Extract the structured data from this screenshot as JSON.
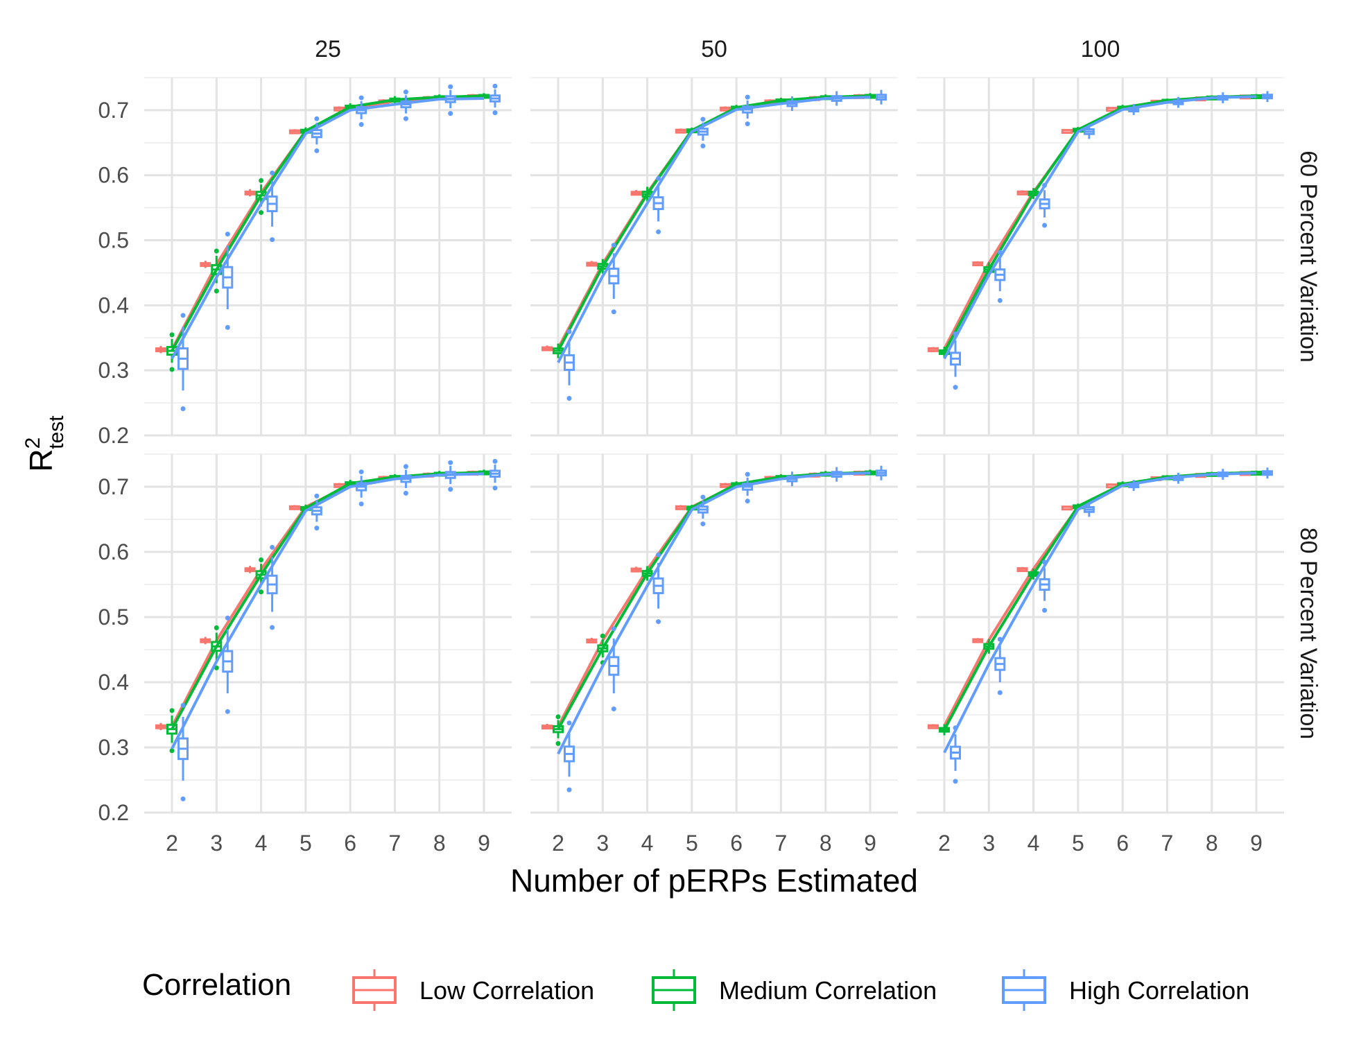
{
  "chart_data": {
    "type": "box-line",
    "xlabel": "Number of pERPs Estimated",
    "ylabel_main": "R",
    "ylabel_sup": "2",
    "ylabel_sub": "test",
    "x_ticks": [
      "2",
      "3",
      "4",
      "5",
      "6",
      "7",
      "8",
      "9"
    ],
    "y_ticks": [
      "0.2",
      "0.3",
      "0.4",
      "0.5",
      "0.6",
      "0.7"
    ],
    "ylim": [
      0.2,
      0.75
    ],
    "col_facets": [
      "25",
      "50",
      "100"
    ],
    "row_facets": [
      "60 Percent Variation",
      "80 Percent Variation"
    ],
    "legend": {
      "title": "Correlation",
      "position": "bottom",
      "entries": [
        "Low Correlation",
        "Medium Correlation",
        "High Correlation"
      ]
    },
    "colors": {
      "Low Correlation": "#F8766D",
      "Medium Correlation": "#00BA38",
      "High Correlation": "#619CFF"
    },
    "grid": true,
    "x": [
      2,
      3,
      4,
      5,
      6,
      7,
      8,
      9
    ],
    "panels": [
      {
        "col": "25",
        "row": "60 Percent Variation",
        "series": [
          {
            "name": "Low Correlation",
            "median": [
              0.332,
              0.463,
              0.573,
              0.668,
              0.703,
              0.714,
              0.719,
              0.722
            ],
            "spread": [
              0.004,
              0.004,
              0.004,
              0.002,
              0.002,
              0.002,
              0.002,
              0.002
            ]
          },
          {
            "name": "Medium Correlation",
            "median": [
              0.33,
              0.455,
              0.569,
              0.668,
              0.705,
              0.716,
              0.72,
              0.722
            ],
            "spread": [
              0.013,
              0.015,
              0.012,
              0.004,
              0.004,
              0.004,
              0.003,
              0.003
            ]
          },
          {
            "name": "High Correlation",
            "median": [
              0.318,
              0.443,
              0.556,
              0.664,
              0.7,
              0.709,
              0.717,
              0.718
            ],
            "spread": [
              0.035,
              0.035,
              0.025,
              0.012,
              0.01,
              0.01,
              0.01,
              0.01
            ]
          }
        ]
      },
      {
        "col": "50",
        "row": "60 Percent Variation",
        "series": [
          {
            "name": "Low Correlation",
            "median": [
              0.334,
              0.464,
              0.573,
              0.669,
              0.703,
              0.714,
              0.719,
              0.722
            ],
            "spread": [
              0.003,
              0.003,
              0.003,
              0.002,
              0.002,
              0.002,
              0.002,
              0.002
            ]
          },
          {
            "name": "Medium Correlation",
            "median": [
              0.33,
              0.46,
              0.571,
              0.669,
              0.704,
              0.715,
              0.72,
              0.722
            ],
            "spread": [
              0.008,
              0.008,
              0.008,
              0.003,
              0.003,
              0.003,
              0.003,
              0.003
            ]
          },
          {
            "name": "High Correlation",
            "median": [
              0.312,
              0.445,
              0.557,
              0.667,
              0.701,
              0.71,
              0.718,
              0.72
            ],
            "spread": [
              0.025,
              0.025,
              0.02,
              0.01,
              0.01,
              0.008,
              0.008,
              0.008
            ]
          }
        ]
      },
      {
        "col": "100",
        "row": "60 Percent Variation",
        "series": [
          {
            "name": "Low Correlation",
            "median": [
              0.333,
              0.465,
              0.574,
              0.669,
              0.703,
              0.714,
              0.719,
              0.722
            ],
            "spread": [
              0.002,
              0.002,
              0.002,
              0.001,
              0.001,
              0.001,
              0.001,
              0.001
            ]
          },
          {
            "name": "Medium Correlation",
            "median": [
              0.328,
              0.455,
              0.572,
              0.67,
              0.704,
              0.715,
              0.72,
              0.722
            ],
            "spread": [
              0.006,
              0.008,
              0.006,
              0.003,
              0.003,
              0.002,
              0.002,
              0.002
            ]
          },
          {
            "name": "High Correlation",
            "median": [
              0.318,
              0.447,
              0.556,
              0.667,
              0.701,
              0.712,
              0.719,
              0.721
            ],
            "spread": [
              0.02,
              0.018,
              0.015,
              0.008,
              0.006,
              0.006,
              0.006,
              0.006
            ]
          }
        ]
      },
      {
        "col": "25",
        "row": "80 Percent Variation",
        "series": [
          {
            "name": "Low Correlation",
            "median": [
              0.332,
              0.464,
              0.573,
              0.669,
              0.703,
              0.714,
              0.719,
              0.722
            ],
            "spread": [
              0.004,
              0.004,
              0.004,
              0.002,
              0.002,
              0.002,
              0.002,
              0.002
            ]
          },
          {
            "name": "Medium Correlation",
            "median": [
              0.328,
              0.455,
              0.565,
              0.667,
              0.705,
              0.715,
              0.72,
              0.722
            ],
            "spread": [
              0.015,
              0.015,
              0.012,
              0.004,
              0.004,
              0.003,
              0.003,
              0.003
            ]
          },
          {
            "name": "High Correlation",
            "median": [
              0.298,
              0.432,
              0.55,
              0.663,
              0.7,
              0.712,
              0.718,
              0.72
            ],
            "spread": [
              0.035,
              0.035,
              0.03,
              0.012,
              0.012,
              0.01,
              0.01,
              0.01
            ]
          }
        ]
      },
      {
        "col": "50",
        "row": "80 Percent Variation",
        "series": [
          {
            "name": "Low Correlation",
            "median": [
              0.332,
              0.464,
              0.573,
              0.669,
              0.703,
              0.714,
              0.719,
              0.722
            ],
            "spread": [
              0.003,
              0.003,
              0.003,
              0.002,
              0.002,
              0.002,
              0.002,
              0.002
            ]
          },
          {
            "name": "Medium Correlation",
            "median": [
              0.328,
              0.452,
              0.567,
              0.668,
              0.704,
              0.715,
              0.72,
              0.722
            ],
            "spread": [
              0.01,
              0.01,
              0.008,
              0.003,
              0.003,
              0.003,
              0.003,
              0.003
            ]
          },
          {
            "name": "High Correlation",
            "median": [
              0.29,
              0.425,
              0.548,
              0.665,
              0.7,
              0.712,
              0.719,
              0.721
            ],
            "spread": [
              0.025,
              0.03,
              0.025,
              0.01,
              0.01,
              0.008,
              0.008,
              0.008
            ]
          }
        ]
      },
      {
        "col": "100",
        "row": "80 Percent Variation",
        "series": [
          {
            "name": "Low Correlation",
            "median": [
              0.333,
              0.465,
              0.574,
              0.669,
              0.703,
              0.714,
              0.719,
              0.722
            ],
            "spread": [
              0.002,
              0.002,
              0.002,
              0.001,
              0.001,
              0.001,
              0.001,
              0.001
            ]
          },
          {
            "name": "Medium Correlation",
            "median": [
              0.327,
              0.455,
              0.566,
              0.67,
              0.704,
              0.715,
              0.72,
              0.722
            ],
            "spread": [
              0.006,
              0.008,
              0.006,
              0.003,
              0.003,
              0.002,
              0.002,
              0.002
            ]
          },
          {
            "name": "High Correlation",
            "median": [
              0.292,
              0.428,
              0.55,
              0.665,
              0.702,
              0.713,
              0.719,
              0.721
            ],
            "spread": [
              0.02,
              0.02,
              0.018,
              0.008,
              0.006,
              0.006,
              0.006,
              0.006
            ]
          }
        ]
      }
    ]
  }
}
